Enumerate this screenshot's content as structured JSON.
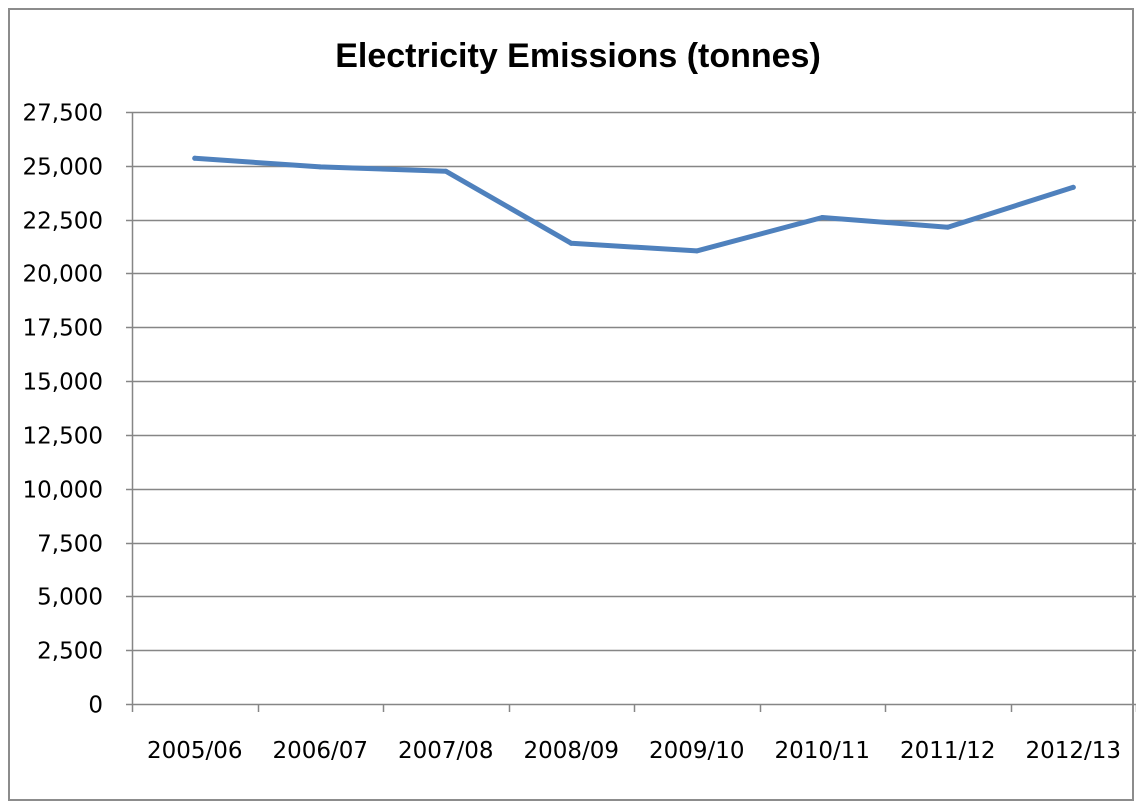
{
  "chart_data": {
    "type": "line",
    "title": "Electricity Emissions (tonnes)",
    "xlabel": "",
    "ylabel": "",
    "categories": [
      "2005/06",
      "2006/07",
      "2007/08",
      "2008/09",
      "2009/10",
      "2010/11",
      "2011/12",
      "2012/13"
    ],
    "series": [
      {
        "values": [
          25350,
          24950,
          24750,
          21400,
          21050,
          22600,
          22150,
          24000
        ]
      }
    ],
    "ylim": [
      0,
      27500
    ],
    "yticks": [
      0,
      2500,
      5000,
      7500,
      10000,
      12500,
      15000,
      17500,
      20000,
      22500,
      25000,
      27500
    ],
    "ytick_labels": [
      "0",
      "2,500",
      "5,000",
      "7,500",
      "10,000",
      "12,500",
      "15,000",
      "17,500",
      "20,000",
      "22,500",
      "25,000",
      "27,500"
    ],
    "grid": true,
    "legend": "none",
    "colors": {
      "line": "#4f81bd",
      "grid": "#868686",
      "axis": "#868686"
    }
  }
}
